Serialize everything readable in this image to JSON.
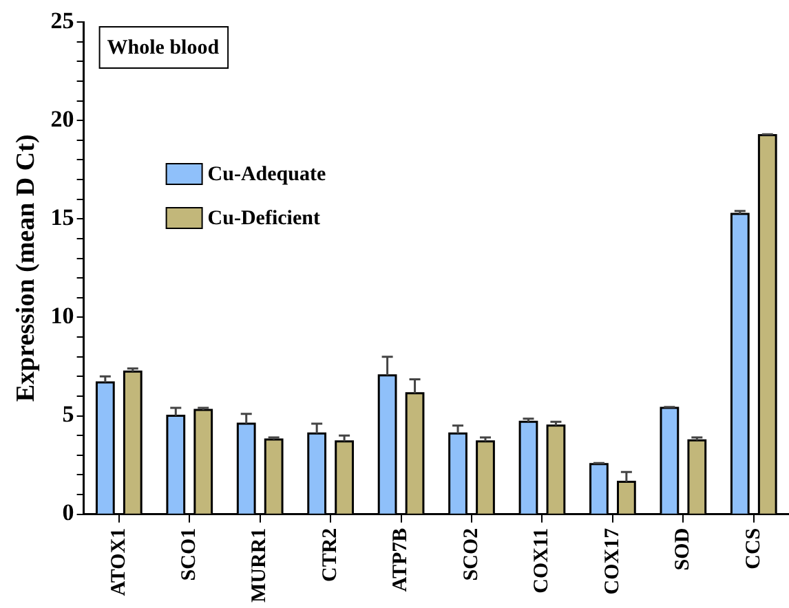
{
  "chart_data": {
    "type": "bar",
    "ylabel": "Expression (mean D Ct)",
    "annotations": [
      "Whole blood"
    ],
    "categories": [
      "ATOX1",
      "SCO1",
      "MURR1",
      "CTR2",
      "ATP7B",
      "SCO2",
      "COX11",
      "COX17",
      "SOD",
      "CCS"
    ],
    "series": [
      {
        "name": "Cu-Adequate",
        "color": "#8fc0fa",
        "values": [
          6.7,
          5.0,
          4.6,
          4.1,
          7.05,
          4.1,
          4.7,
          2.55,
          5.4,
          15.25
        ],
        "errors": [
          [
            6.7,
            7.0
          ],
          [
            5.0,
            5.4
          ],
          [
            4.6,
            5.1
          ],
          [
            4.1,
            4.6
          ],
          [
            7.05,
            8.0
          ],
          [
            4.1,
            4.5
          ],
          [
            4.7,
            4.85
          ],
          [
            2.55,
            2.6
          ],
          [
            5.4,
            5.45
          ],
          [
            15.25,
            15.4
          ]
        ]
      },
      {
        "name": "Cu-Deficient",
        "color": "#c2b77a",
        "values": [
          7.25,
          5.3,
          3.8,
          3.7,
          6.15,
          3.7,
          4.5,
          1.65,
          3.75,
          19.25
        ],
        "errors": [
          [
            7.25,
            7.4
          ],
          [
            5.3,
            5.4
          ],
          [
            3.8,
            3.9
          ],
          [
            3.7,
            4.0
          ],
          [
            6.15,
            6.85
          ],
          [
            3.7,
            3.9
          ],
          [
            4.5,
            4.7
          ],
          [
            1.65,
            2.15
          ],
          [
            3.75,
            3.9
          ],
          [
            19.25,
            19.3
          ]
        ]
      }
    ],
    "ylim": [
      0,
      25
    ],
    "yticks": [
      0,
      {
        "value": 1,
        "label": null
      },
      {
        "value": 2,
        "label": null
      },
      {
        "value": 3,
        "label": null
      },
      {
        "value": 4,
        "label": null
      },
      5,
      {
        "value": 6,
        "label": null
      },
      {
        "value": 7,
        "label": null
      },
      {
        "value": 8,
        "label": null
      },
      {
        "value": 9,
        "label": null
      },
      10,
      {
        "value": 11,
        "label": null
      },
      {
        "value": 12,
        "label": null
      },
      {
        "value": 13,
        "label": null
      },
      {
        "value": 14,
        "label": null
      },
      15,
      {
        "value": 16,
        "label": null
      },
      {
        "value": 17,
        "label": null
      },
      {
        "value": 18,
        "label": null
      },
      {
        "value": 19,
        "label": null
      },
      20,
      {
        "value": 21,
        "label": null
      },
      {
        "value": 22,
        "label": null
      },
      {
        "value": 23,
        "label": null
      },
      {
        "value": 24,
        "label": null
      },
      25
    ],
    "legend": "top left",
    "grid": false
  }
}
